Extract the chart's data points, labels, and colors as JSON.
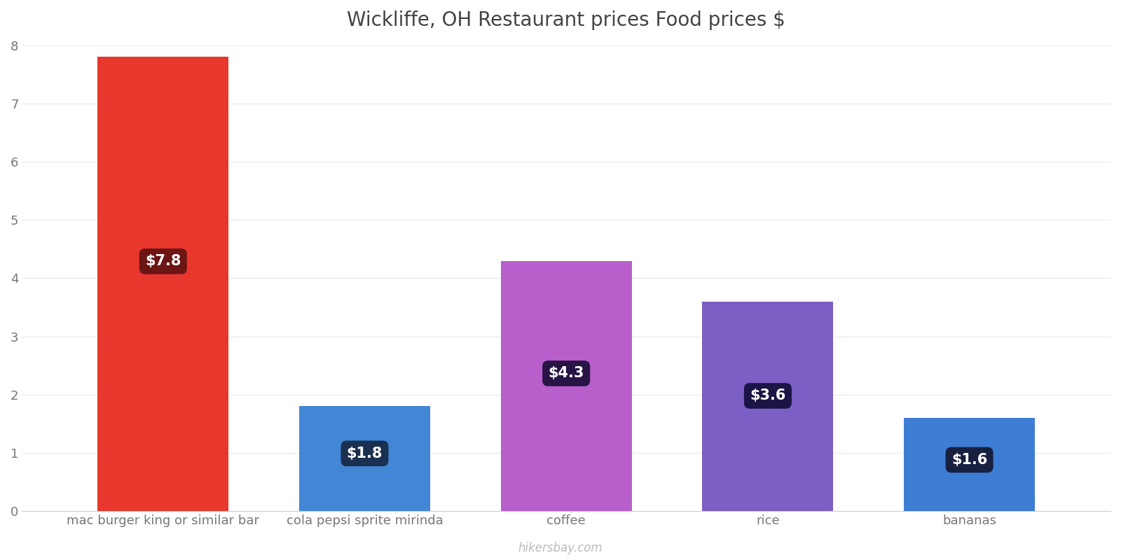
{
  "title": "Wickliffe, OH Restaurant prices Food prices $",
  "categories": [
    "mac burger king or similar bar",
    "cola pepsi sprite mirinda",
    "coffee",
    "rice",
    "bananas"
  ],
  "values": [
    7.8,
    1.8,
    4.3,
    3.6,
    1.6
  ],
  "bar_colors": [
    "#e8372c",
    "#4287d6",
    "#b85fcc",
    "#7b5fc4",
    "#3d7dd4"
  ],
  "label_bg_colors": [
    "#6b1515",
    "#1a3050",
    "#281545",
    "#1a1545",
    "#182040"
  ],
  "labels": [
    "$7.8",
    "$1.8",
    "$4.3",
    "$3.6",
    "$1.6"
  ],
  "ylim": [
    0,
    8
  ],
  "yticks": [
    0,
    1,
    2,
    3,
    4,
    5,
    6,
    7,
    8
  ],
  "ylabel": "",
  "xlabel": "",
  "watermark": "hikersbay.com",
  "title_fontsize": 20,
  "tick_fontsize": 13,
  "background_color": "#ffffff",
  "label_fontsize": 15,
  "bar_width": 0.65
}
